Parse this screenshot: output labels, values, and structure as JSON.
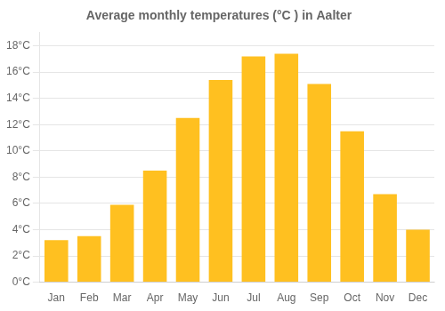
{
  "chart_data": {
    "type": "bar",
    "title": "Average monthly temperatures (°C ) in Aalter",
    "categories": [
      "Jan",
      "Feb",
      "Mar",
      "Apr",
      "May",
      "Jun",
      "Jul",
      "Aug",
      "Sep",
      "Oct",
      "Nov",
      "Dec"
    ],
    "values": [
      3.2,
      3.5,
      5.9,
      8.5,
      12.5,
      15.4,
      17.2,
      17.4,
      15.1,
      11.5,
      6.7,
      4.0
    ],
    "color": "#FFC020",
    "ylim": [
      0,
      19
    ],
    "yticks": [
      {
        "value": 0,
        "label": "0°C"
      },
      {
        "value": 2,
        "label": "2°C"
      },
      {
        "value": 4,
        "label": "4°C"
      },
      {
        "value": 6,
        "label": "6°C"
      },
      {
        "value": 8,
        "label": "8°C"
      },
      {
        "value": 10,
        "label": "10°C"
      },
      {
        "value": 12,
        "label": "12°C"
      },
      {
        "value": 14,
        "label": "14°C"
      },
      {
        "value": 16,
        "label": "16°C"
      },
      {
        "value": 18,
        "label": "18°C"
      }
    ],
    "grid": true
  }
}
